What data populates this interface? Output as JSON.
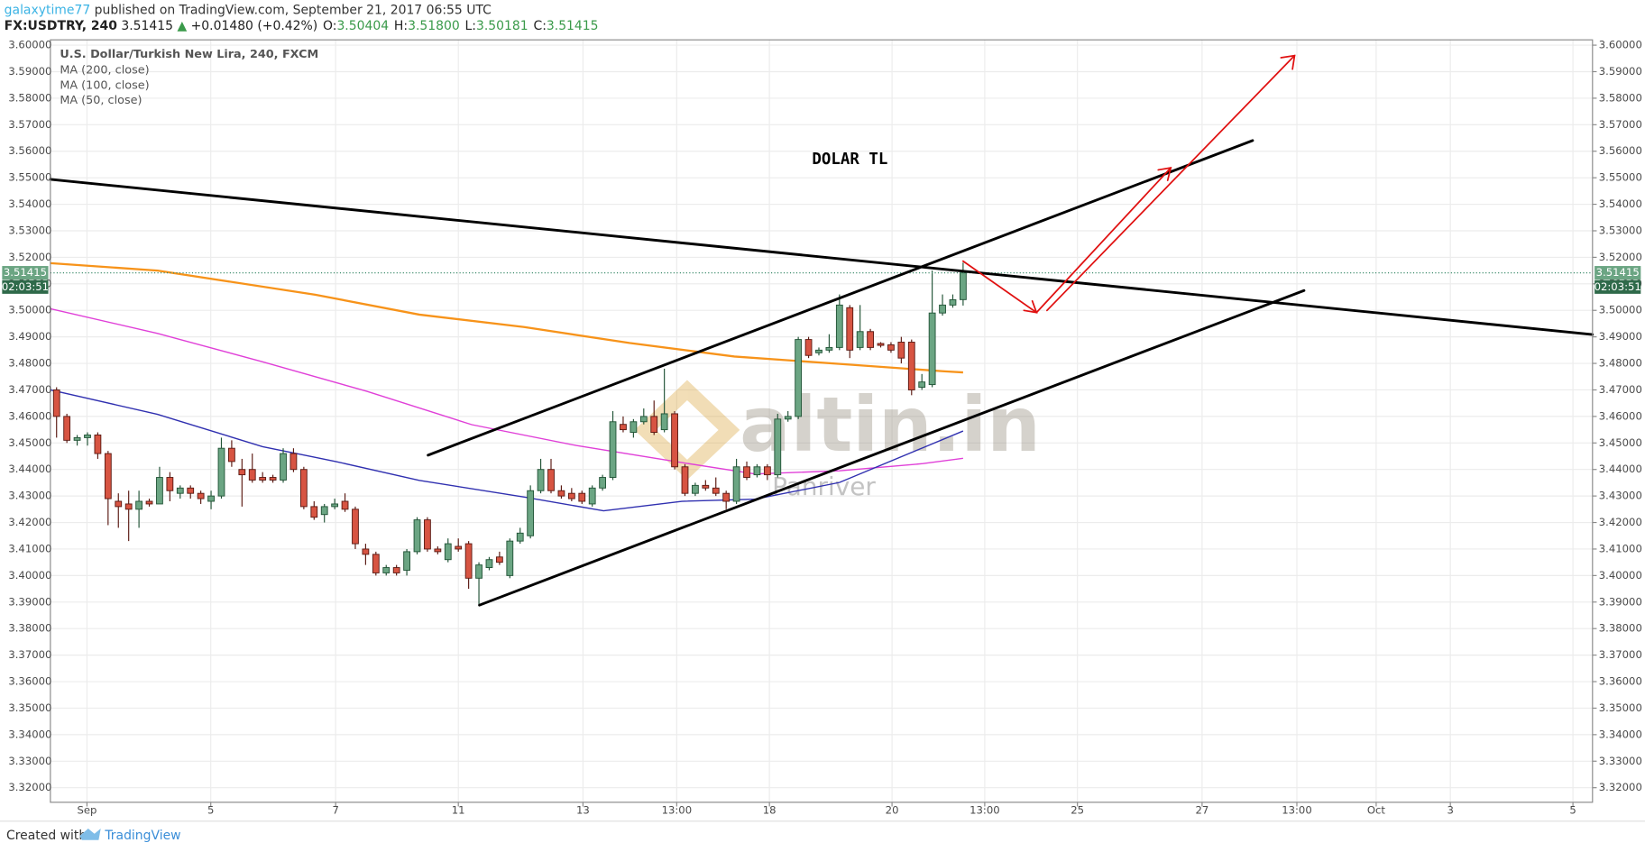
{
  "header": {
    "author": "galaxytime77",
    "published": "published on TradingView.com, September 21, 2017 06:55 UTC",
    "symbol": "FX:USDTRY, 240",
    "last": "3.51415",
    "change": "+0.01480 (+0.42%)",
    "ohlc": [
      {
        "label": "O:",
        "value": "3.50404"
      },
      {
        "label": "H:",
        "value": "3.51800"
      },
      {
        "label": "L:",
        "value": "3.50181"
      },
      {
        "label": "C:",
        "value": "3.51415"
      }
    ]
  },
  "footer": {
    "created": "Created with",
    "brand": "TradingView"
  },
  "chart_data": {
    "type": "candlestick",
    "title": "U.S. Dollar/Turkish New Lira, 240, FXCM",
    "annotation": "DOLAR TL",
    "watermark": [
      "altin.in",
      "Panriver"
    ],
    "up_color": "#6ba583",
    "down_color": "#d75442",
    "up_border": "#225437",
    "down_border": "#5b1a13",
    "grid": true,
    "open": [
      3.47,
      3.46,
      3.451,
      3.452,
      3.453,
      3.446,
      3.428,
      3.427,
      3.425,
      3.428,
      3.427,
      3.437,
      3.431,
      3.433,
      3.431,
      3.428,
      3.43,
      3.448,
      3.44,
      3.44,
      3.437,
      3.437,
      3.436,
      3.446,
      3.44,
      3.426,
      3.423,
      3.426,
      3.428,
      3.425,
      3.41,
      3.408,
      3.401,
      3.403,
      3.402,
      3.409,
      3.421,
      3.41,
      3.406,
      3.411,
      3.412,
      3.399,
      3.403,
      3.407,
      3.4,
      3.413,
      3.415,
      3.432,
      3.44,
      3.432,
      3.431,
      3.431,
      3.427,
      3.433,
      3.437,
      3.457,
      3.454,
      3.458,
      3.46,
      3.455,
      3.461,
      3.441,
      3.431,
      3.434,
      3.433,
      3.431,
      3.428,
      3.441,
      3.438,
      3.441,
      3.438,
      3.459,
      3.46,
      3.489,
      3.484,
      3.485,
      3.486,
      3.501,
      3.486,
      3.492,
      3.4875,
      3.487,
      3.488,
      3.488,
      3.471,
      3.472,
      3.499,
      3.502,
      3.50404
    ],
    "high": [
      3.471,
      3.461,
      3.453,
      3.454,
      3.454,
      3.447,
      3.431,
      3.432,
      3.432,
      3.429,
      3.441,
      3.439,
      3.434,
      3.434,
      3.432,
      3.432,
      3.452,
      3.451,
      3.444,
      3.446,
      3.439,
      3.438,
      3.448,
      3.448,
      3.441,
      3.428,
      3.427,
      3.429,
      3.431,
      3.426,
      3.412,
      3.409,
      3.404,
      3.404,
      3.41,
      3.422,
      3.422,
      3.411,
      3.414,
      3.414,
      3.413,
      3.405,
      3.407,
      3.409,
      3.414,
      3.418,
      3.434,
      3.444,
      3.444,
      3.434,
      3.433,
      3.432,
      3.434,
      3.438,
      3.462,
      3.46,
      3.459,
      3.463,
      3.466,
      3.478,
      3.462,
      3.442,
      3.435,
      3.436,
      3.437,
      3.432,
      3.444,
      3.443,
      3.442,
      3.442,
      3.461,
      3.462,
      3.49,
      3.49,
      3.486,
      3.491,
      3.506,
      3.502,
      3.502,
      3.493,
      3.488,
      3.488,
      3.49,
      3.489,
      3.476,
      3.515,
      3.506,
      3.506,
      3.518
    ],
    "low": [
      3.452,
      3.45,
      3.449,
      3.449,
      3.444,
      3.419,
      3.418,
      3.413,
      3.418,
      3.426,
      3.427,
      3.428,
      3.429,
      3.429,
      3.427,
      3.425,
      3.429,
      3.441,
      3.426,
      3.435,
      3.435,
      3.435,
      3.435,
      3.439,
      3.425,
      3.421,
      3.42,
      3.425,
      3.424,
      3.41,
      3.404,
      3.4,
      3.4,
      3.4,
      3.4,
      3.408,
      3.409,
      3.408,
      3.405,
      3.409,
      3.395,
      3.389,
      3.402,
      3.404,
      3.399,
      3.412,
      3.414,
      3.431,
      3.431,
      3.429,
      3.428,
      3.427,
      3.426,
      3.432,
      3.436,
      3.454,
      3.452,
      3.457,
      3.453,
      3.454,
      3.44,
      3.43,
      3.43,
      3.432,
      3.43,
      3.425,
      3.427,
      3.436,
      3.437,
      3.436,
      3.437,
      3.458,
      3.459,
      3.482,
      3.483,
      3.484,
      3.485,
      3.482,
      3.485,
      3.485,
      3.486,
      3.484,
      3.48,
      3.468,
      3.47,
      3.471,
      3.498,
      3.501,
      3.50181
    ],
    "close": [
      3.46,
      3.451,
      3.452,
      3.453,
      3.446,
      3.429,
      3.426,
      3.425,
      3.428,
      3.427,
      3.437,
      3.432,
      3.433,
      3.431,
      3.429,
      3.43,
      3.448,
      3.443,
      3.438,
      3.436,
      3.436,
      3.436,
      3.446,
      3.44,
      3.426,
      3.422,
      3.426,
      3.427,
      3.425,
      3.412,
      3.408,
      3.401,
      3.403,
      3.401,
      3.409,
      3.421,
      3.41,
      3.409,
      3.412,
      3.41,
      3.399,
      3.404,
      3.406,
      3.405,
      3.413,
      3.416,
      3.432,
      3.44,
      3.432,
      3.43,
      3.429,
      3.428,
      3.433,
      3.437,
      3.458,
      3.455,
      3.458,
      3.46,
      3.454,
      3.461,
      3.441,
      3.431,
      3.434,
      3.433,
      3.431,
      3.428,
      3.441,
      3.437,
      3.441,
      3.438,
      3.459,
      3.46,
      3.489,
      3.483,
      3.485,
      3.486,
      3.502,
      3.485,
      3.492,
      3.486,
      3.4868,
      3.485,
      3.482,
      3.47,
      3.473,
      3.499,
      3.502,
      3.504,
      3.51415
    ],
    "overlays": [
      {
        "name": "MA (200, close)",
        "color": "#f7931a",
        "x": [
          -0.6,
          9.8,
          25.1,
          35.2,
          45.4,
          55.6,
          65.8,
          76.0,
          86.2,
          88
        ],
        "values": [
          3.5178,
          3.515,
          3.5059,
          3.4984,
          3.4937,
          3.4877,
          3.4826,
          3.4798,
          3.477,
          3.4766
        ]
      },
      {
        "name": "MA (100, close)",
        "color": "#e040d8",
        "x": [
          -0.6,
          9.8,
          20.0,
          30.1,
          40.3,
          50.5,
          60.7,
          67.8,
          76.0,
          84.1,
          88
        ],
        "values": [
          3.5006,
          3.4913,
          3.4806,
          3.4695,
          3.4569,
          3.449,
          3.4426,
          3.4383,
          3.4395,
          3.4422,
          3.4442
        ]
      },
      {
        "name": "MA (50, close)",
        "color": "#3030b0",
        "x": [
          -0.6,
          9.8,
          20.0,
          27.1,
          35.2,
          45.4,
          53.1,
          60.7,
          67.8,
          76.0,
          84.1,
          88
        ],
        "values": [
          3.47,
          3.4608,
          3.4486,
          3.443,
          3.4359,
          3.4296,
          3.4244,
          3.428,
          3.4288,
          3.4351,
          3.4482,
          3.4545
        ]
      }
    ],
    "last_price": 3.51415,
    "countdown": "02:03:51",
    "xlim": [
      -0.6,
      149.1
    ],
    "xticks": [
      {
        "value": 2.95,
        "label": "Sep"
      },
      {
        "value": 14.97,
        "label": "5"
      },
      {
        "value": 27.09,
        "label": "7"
      },
      {
        "value": 39.0,
        "label": "11"
      },
      {
        "value": 51.1,
        "label": "13"
      },
      {
        "value": 60.2,
        "label": "13:00"
      },
      {
        "value": 69.2,
        "label": "18"
      },
      {
        "value": 81.1,
        "label": "20"
      },
      {
        "value": 90.1,
        "label": "13:00"
      },
      {
        "value": 99.1,
        "label": "25"
      },
      {
        "value": 111.2,
        "label": "27"
      },
      {
        "value": 120.4,
        "label": "13:00"
      },
      {
        "value": 128.1,
        "label": "Oct"
      },
      {
        "value": 135.3,
        "label": "3"
      },
      {
        "value": 147.2,
        "label": "5"
      }
    ],
    "ylim": [
      3.3145,
      3.602
    ],
    "yticks": [
      {
        "value": 3.32,
        "label": "3.32000"
      },
      {
        "value": 3.33,
        "label": "3.33000"
      },
      {
        "value": 3.34,
        "label": "3.34000"
      },
      {
        "value": 3.35,
        "label": "3.35000"
      },
      {
        "value": 3.36,
        "label": "3.36000"
      },
      {
        "value": 3.37,
        "label": "3.37000"
      },
      {
        "value": 3.38,
        "label": "3.38000"
      },
      {
        "value": 3.39,
        "label": "3.39000"
      },
      {
        "value": 3.4,
        "label": "3.40000"
      },
      {
        "value": 3.41,
        "label": "3.41000"
      },
      {
        "value": 3.42,
        "label": "3.42000"
      },
      {
        "value": 3.43,
        "label": "3.43000"
      },
      {
        "value": 3.44,
        "label": "3.44000"
      },
      {
        "value": 3.45,
        "label": "3.45000"
      },
      {
        "value": 3.46,
        "label": "3.46000"
      },
      {
        "value": 3.47,
        "label": "3.47000"
      },
      {
        "value": 3.48,
        "label": "3.48000"
      },
      {
        "value": 3.49,
        "label": "3.49000"
      },
      {
        "value": 3.5,
        "label": "3.50000"
      },
      {
        "value": 3.51,
        "label": "3.51000"
      },
      {
        "value": 3.52,
        "label": "3.52000"
      },
      {
        "value": 3.53,
        "label": "3.53000"
      },
      {
        "value": 3.54,
        "label": "3.54000"
      },
      {
        "value": 3.55,
        "label": "3.55000"
      },
      {
        "value": 3.56,
        "label": "3.56000"
      },
      {
        "value": 3.57,
        "label": "3.57000"
      },
      {
        "value": 3.58,
        "label": "3.58000"
      },
      {
        "value": 3.59,
        "label": "3.59000"
      },
      {
        "value": 3.6,
        "label": "3.60000"
      }
    ]
  }
}
